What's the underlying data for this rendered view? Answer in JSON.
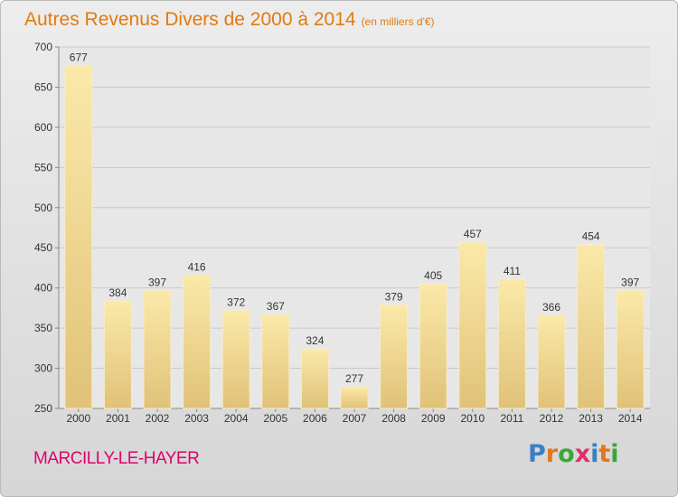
{
  "title": "Autres Revenus Divers de 2000 à 2014",
  "subtitle": "(en milliers d'€)",
  "location": "MARCILLY-LE-HAYER",
  "logo": {
    "text": "Proxiti",
    "letter_colors": [
      "#3a7fc4",
      "#e4761b",
      "#3aa835",
      "#e0306a",
      "#3a7fc4",
      "#e4761b",
      "#3aa835"
    ]
  },
  "colors": {
    "title": "#e07b0f",
    "location": "#e0006e",
    "bar_light": "#fbe9a9",
    "bar_dark": "#e0c278"
  },
  "chart_data": {
    "type": "bar",
    "categories": [
      "2000",
      "2001",
      "2002",
      "2003",
      "2004",
      "2005",
      "2006",
      "2007",
      "2008",
      "2009",
      "2010",
      "2011",
      "2012",
      "2013",
      "2014"
    ],
    "values": [
      677,
      384,
      397,
      416,
      372,
      367,
      324,
      277,
      379,
      405,
      457,
      411,
      366,
      454,
      397
    ],
    "ylim": [
      250,
      700
    ],
    "yticks": [
      250,
      300,
      350,
      400,
      450,
      500,
      550,
      600,
      650,
      700
    ],
    "grid": true,
    "title": "Autres Revenus Divers de 2000 à 2014",
    "xlabel": "",
    "ylabel": ""
  }
}
